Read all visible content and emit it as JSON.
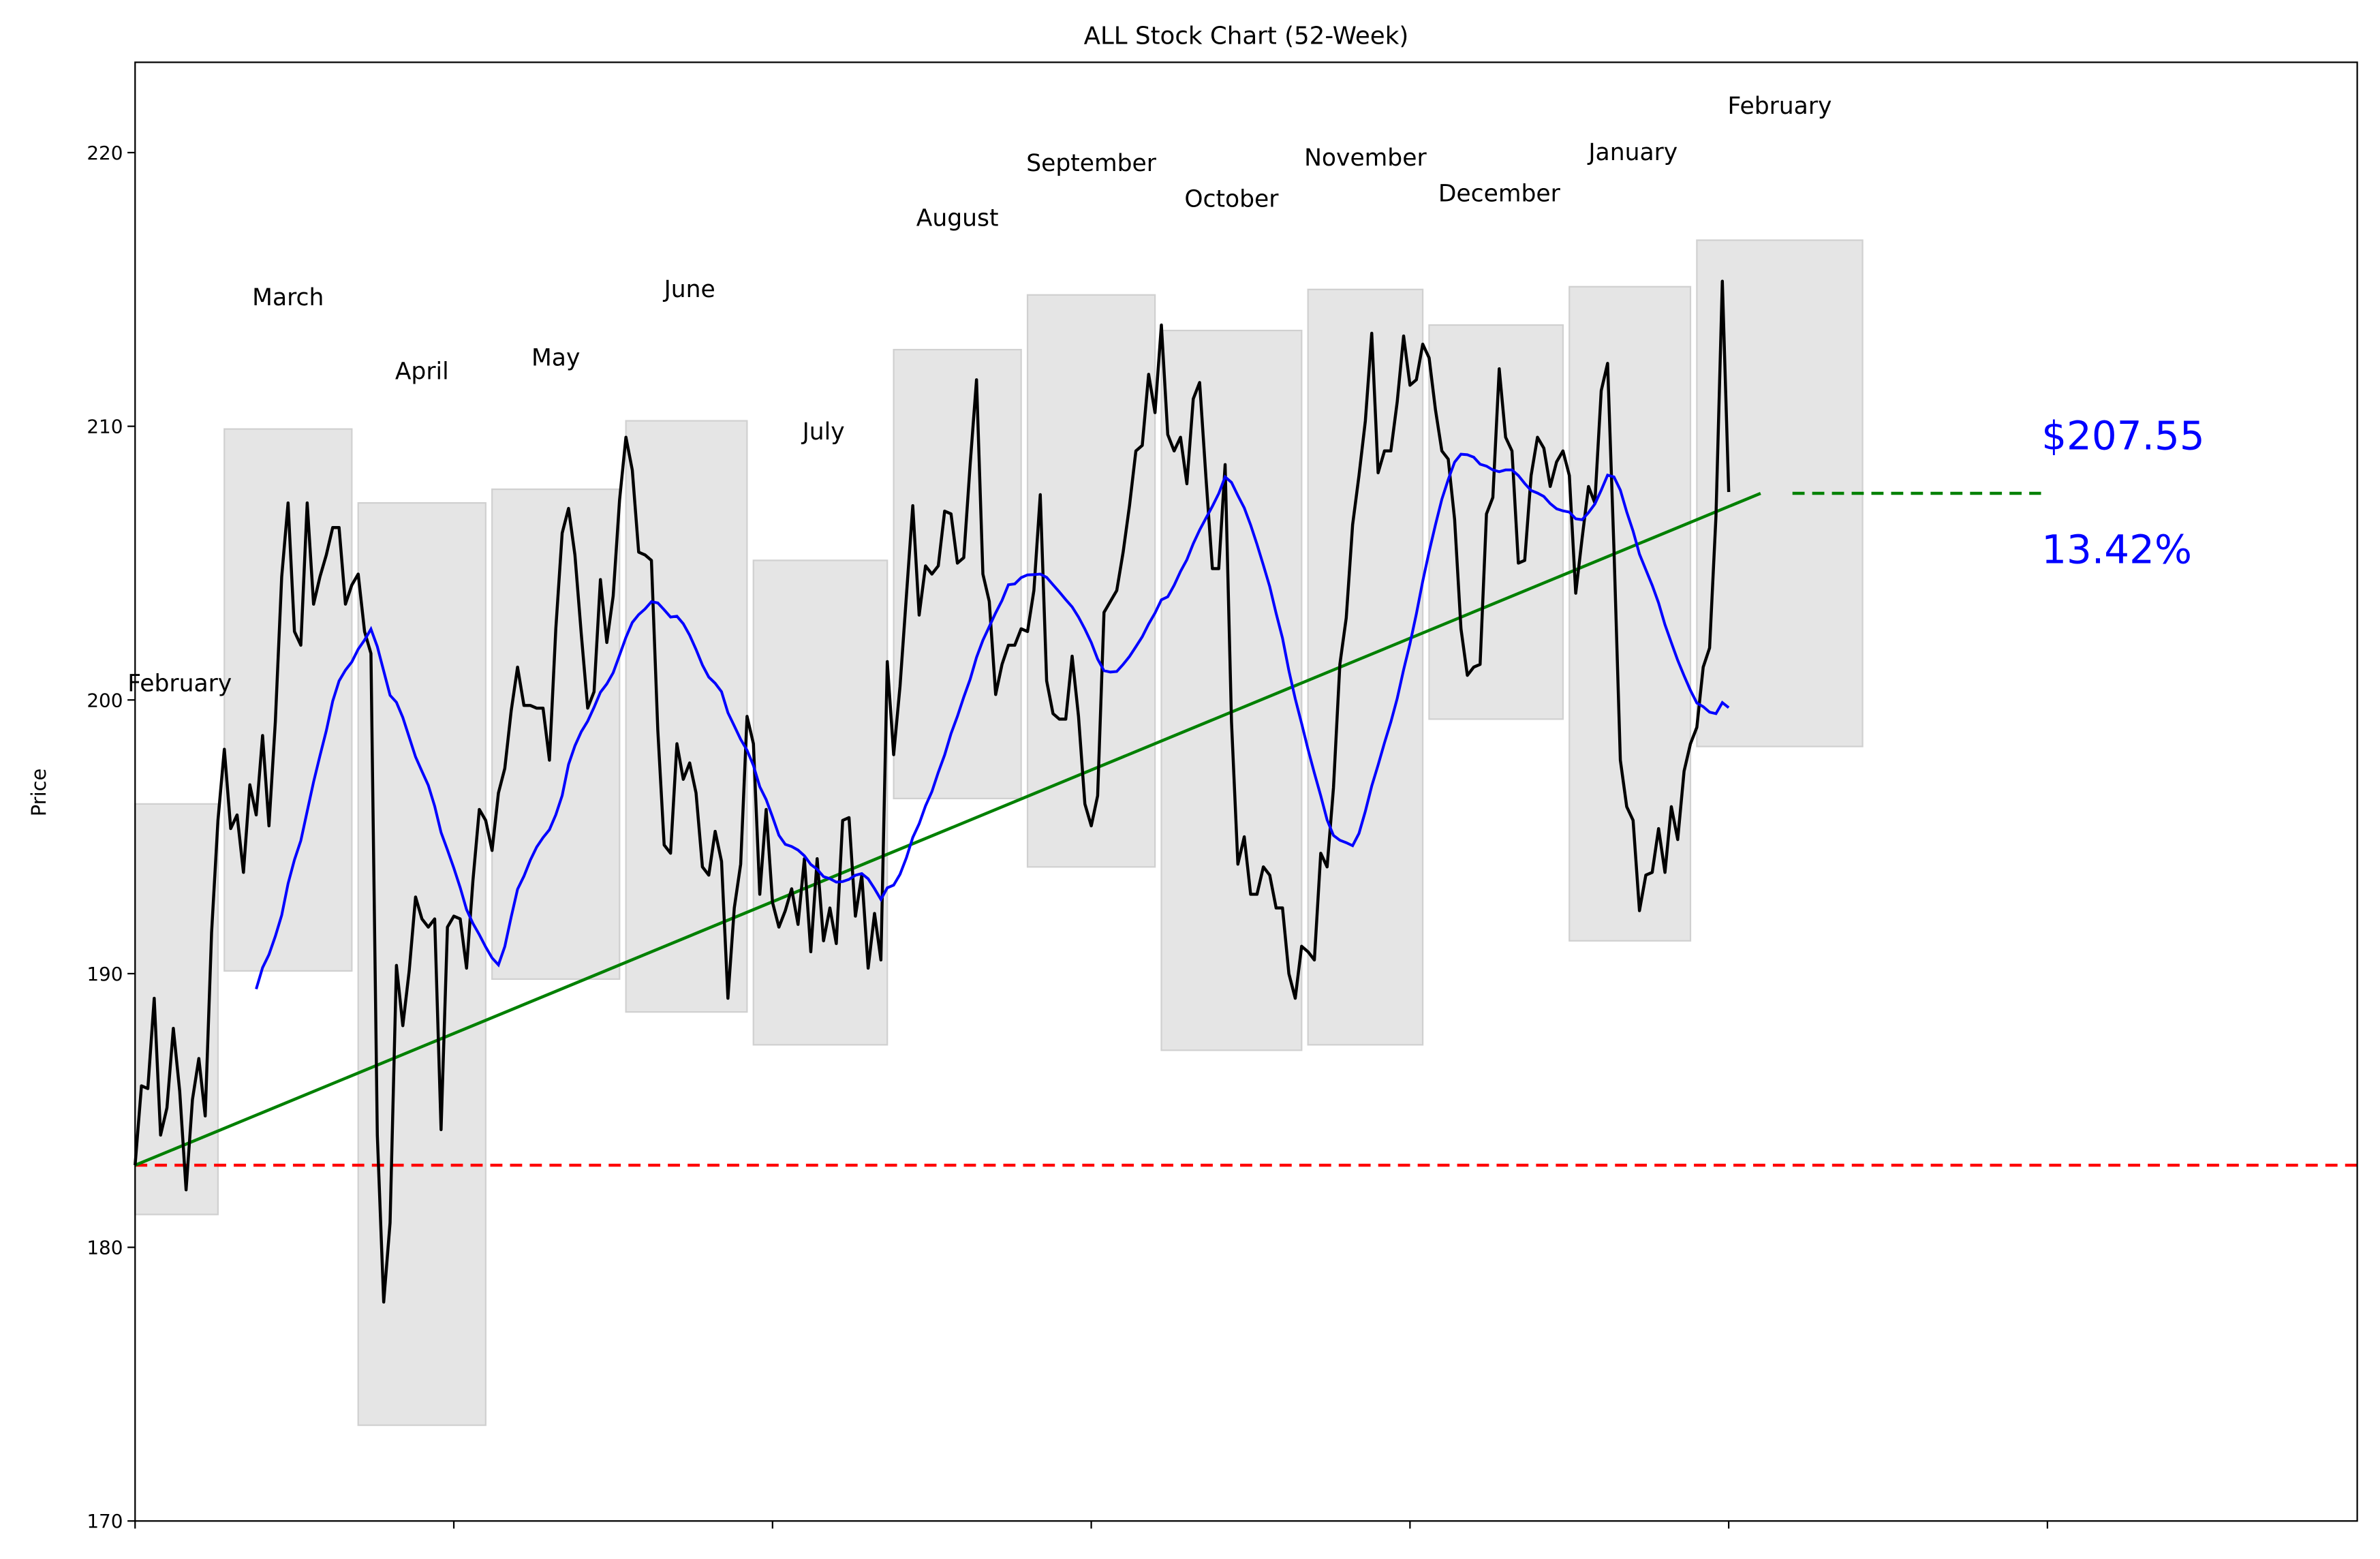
{
  "chart_data": {
    "type": "line",
    "title": "ALL Stock Chart (52-Week)",
    "xlabel": "",
    "ylabel": "Price",
    "xlim": [
      0,
      348.6
    ],
    "ylim": [
      170,
      223.3
    ],
    "x_ticks": [
      0,
      50,
      100,
      150,
      200,
      250,
      300
    ],
    "y_ticks": [
      170,
      180,
      190,
      200,
      210,
      220
    ],
    "grid": false,
    "legend": "none",
    "colors": {
      "price": "#000000",
      "moving_average": "#0000ff",
      "baseline": "#ff0000",
      "trend": "#008000",
      "month_box": "#e5e5e5"
    },
    "moving_average_window": 20,
    "price": [
      183.0,
      185.9,
      185.8,
      189.1,
      184.1,
      185.1,
      188.0,
      185.7,
      182.1,
      185.4,
      186.9,
      184.8,
      191.5,
      195.6,
      198.2,
      195.3,
      195.8,
      193.7,
      196.9,
      195.8,
      198.7,
      195.4,
      199.2,
      204.5,
      207.2,
      202.5,
      202.0,
      207.2,
      203.5,
      204.5,
      205.3,
      206.3,
      206.3,
      203.5,
      204.2,
      204.6,
      202.5,
      201.7,
      184.1,
      178.0,
      180.9,
      190.3,
      188.1,
      190.1,
      192.8,
      192.0,
      191.7,
      192.0,
      184.3,
      191.7,
      192.1,
      192.0,
      190.2,
      193.4,
      196.0,
      195.6,
      194.5,
      196.6,
      197.5,
      199.6,
      201.2,
      199.8,
      199.8,
      199.7,
      199.7,
      197.8,
      202.6,
      206.1,
      207.0,
      205.3,
      202.4,
      199.7,
      200.3,
      204.4,
      202.1,
      203.8,
      207.3,
      209.6,
      208.4,
      205.4,
      205.3,
      205.1,
      198.9,
      194.7,
      194.4,
      198.4,
      197.1,
      197.7,
      196.6,
      193.9,
      193.6,
      195.2,
      194.1,
      189.1,
      192.4,
      194.0,
      199.4,
      198.4,
      192.9,
      196.0,
      192.6,
      191.7,
      192.3,
      193.1,
      191.8,
      194.2,
      190.8,
      194.2,
      191.2,
      192.4,
      191.1,
      195.6,
      195.7,
      192.1,
      193.6,
      190.2,
      192.2,
      190.5,
      201.4,
      198.0,
      200.5,
      203.8,
      207.1,
      203.1,
      204.9,
      204.6,
      204.9,
      206.9,
      206.8,
      205.0,
      205.2,
      208.6,
      211.7,
      204.6,
      203.6,
      200.2,
      201.3,
      202.0,
      202.0,
      202.6,
      202.5,
      204.0,
      207.5,
      200.7,
      199.5,
      199.3,
      199.3,
      201.6,
      199.4,
      196.2,
      195.4,
      196.5,
      203.2,
      203.6,
      204.0,
      205.4,
      207.1,
      209.1,
      209.3,
      211.9,
      210.5,
      213.7,
      209.7,
      209.1,
      209.6,
      207.9,
      211.0,
      211.6,
      208.1,
      204.8,
      204.8,
      208.6,
      199.2,
      194.0,
      195.0,
      192.9,
      192.9,
      193.9,
      193.6,
      192.4,
      192.4,
      190.0,
      189.1,
      191.0,
      190.8,
      190.5,
      194.4,
      193.9,
      196.8,
      201.3,
      203.0,
      206.4,
      208.2,
      210.2,
      213.4,
      208.3,
      209.1,
      209.1,
      210.9,
      213.3,
      211.5,
      211.7,
      213.0,
      212.5,
      210.6,
      209.1,
      208.8,
      206.6,
      202.6,
      200.9,
      201.2,
      201.3,
      206.8,
      207.4,
      212.1,
      209.6,
      209.1,
      205.0,
      205.1,
      208.2,
      209.6,
      209.2,
      207.8,
      208.7,
      209.1,
      208.2,
      203.9,
      205.9,
      207.8,
      207.2,
      211.3,
      212.3,
      205.5,
      197.8,
      196.1,
      195.6,
      192.3,
      193.6,
      193.7,
      195.3,
      193.7,
      196.1,
      194.9,
      197.4,
      198.4,
      199.0,
      201.2,
      201.9,
      206.7,
      215.3,
      207.6
    ],
    "baseline_price": 183.0,
    "trend_line": {
      "start": [
        0,
        183.0
      ],
      "end": [
        255,
        207.55
      ]
    },
    "projection_line": {
      "start": [
        260,
        207.55
      ],
      "end": [
        299,
        207.55
      ]
    },
    "current_price_label": "$207.55",
    "change_label": "13.42%",
    "month_boxes": [
      {
        "month": "February",
        "x": [
          0,
          13
        ],
        "y": [
          181.2,
          196.2
        ],
        "label_pos": [
          7,
          200.6
        ]
      },
      {
        "month": "March",
        "x": [
          14,
          34
        ],
        "y": [
          190.1,
          209.9
        ],
        "label_pos": [
          24,
          214.7
        ]
      },
      {
        "month": "April",
        "x": [
          35,
          55
        ],
        "y": [
          173.5,
          207.2
        ],
        "label_pos": [
          45,
          212.0
        ]
      },
      {
        "month": "May",
        "x": [
          56,
          76
        ],
        "y": [
          189.8,
          207.7
        ],
        "label_pos": [
          66,
          212.5
        ]
      },
      {
        "month": "June",
        "x": [
          77,
          96
        ],
        "y": [
          188.6,
          210.2
        ],
        "label_pos": [
          87,
          215.0
        ]
      },
      {
        "month": "July",
        "x": [
          97,
          118
        ],
        "y": [
          187.4,
          205.1
        ],
        "label_pos": [
          108,
          209.8
        ]
      },
      {
        "month": "August",
        "x": [
          119,
          139
        ],
        "y": [
          196.4,
          212.8
        ],
        "label_pos": [
          129,
          217.6
        ]
      },
      {
        "month": "September",
        "x": [
          140,
          160
        ],
        "y": [
          193.9,
          214.8
        ],
        "label_pos": [
          150,
          219.6
        ]
      },
      {
        "month": "October",
        "x": [
          161,
          183
        ],
        "y": [
          187.2,
          213.5
        ],
        "label_pos": [
          172,
          218.3
        ]
      },
      {
        "month": "November",
        "x": [
          184,
          202
        ],
        "y": [
          187.4,
          215.0
        ],
        "label_pos": [
          193,
          219.8
        ]
      },
      {
        "month": "December",
        "x": [
          203,
          224
        ],
        "y": [
          199.3,
          213.7
        ],
        "label_pos": [
          214,
          218.5
        ]
      },
      {
        "month": "January",
        "x": [
          225,
          244
        ],
        "y": [
          191.2,
          215.1
        ],
        "label_pos": [
          235,
          220.0
        ]
      },
      {
        "month": "February",
        "x": [
          245,
          271
        ],
        "y": [
          198.3,
          216.8
        ],
        "label_pos": [
          258,
          221.7
        ]
      }
    ]
  }
}
